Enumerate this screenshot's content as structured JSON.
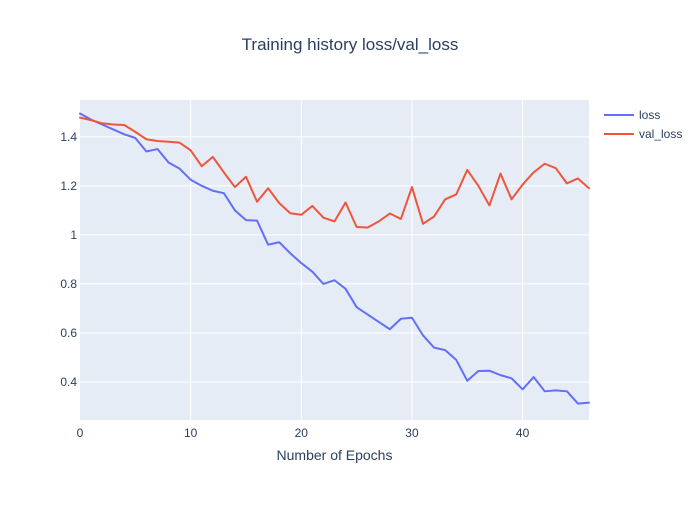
{
  "chart_data": {
    "type": "line",
    "title": "Training history loss/val_loss",
    "xlabel": "Number of Epochs",
    "ylabel": "",
    "xlim": [
      0,
      46
    ],
    "ylim": [
      0.245,
      1.55
    ],
    "xticks": [
      0,
      10,
      20,
      30,
      40
    ],
    "yticks": [
      0.4,
      0.6,
      0.8,
      1,
      1.2,
      1.4
    ],
    "xtick_labels": [
      "0",
      "10",
      "20",
      "30",
      "40"
    ],
    "ytick_labels": [
      "0.4",
      "0.6",
      "0.8",
      "1",
      "1.2",
      "1.4"
    ],
    "grid": true,
    "legend_position": "top-right",
    "colors": {
      "plot_bg": "#e5ecf6",
      "grid": "#ffffff",
      "text": "#2a3f5f",
      "loss": "#636efa",
      "val_loss": "#ef553b"
    },
    "x": [
      0,
      1,
      2,
      3,
      4,
      5,
      6,
      7,
      8,
      9,
      10,
      11,
      12,
      13,
      14,
      15,
      16,
      17,
      18,
      19,
      20,
      21,
      22,
      23,
      24,
      25,
      26,
      27,
      28,
      29,
      30,
      31,
      32,
      33,
      34,
      35,
      36,
      37,
      38,
      39,
      40,
      41,
      42,
      43,
      44,
      45,
      46
    ],
    "series": [
      {
        "name": "loss",
        "color": "#636efa",
        "values": [
          1.495,
          1.47,
          1.45,
          1.43,
          1.41,
          1.395,
          1.34,
          1.35,
          1.295,
          1.27,
          1.225,
          1.2,
          1.18,
          1.17,
          1.1,
          1.06,
          1.058,
          0.96,
          0.97,
          0.925,
          0.885,
          0.85,
          0.8,
          0.815,
          0.78,
          0.705,
          0.675,
          0.645,
          0.615,
          0.658,
          0.662,
          0.59,
          0.54,
          0.53,
          0.49,
          0.405,
          0.445,
          0.446,
          0.428,
          0.415,
          0.37,
          0.42,
          0.362,
          0.366,
          0.362,
          0.312,
          0.316
        ]
      },
      {
        "name": "val_loss",
        "color": "#ef553b",
        "values": [
          1.478,
          1.468,
          1.455,
          1.45,
          1.448,
          1.42,
          1.39,
          1.383,
          1.38,
          1.376,
          1.345,
          1.28,
          1.318,
          1.255,
          1.195,
          1.237,
          1.135,
          1.19,
          1.13,
          1.088,
          1.082,
          1.118,
          1.07,
          1.055,
          1.132,
          1.032,
          1.03,
          1.055,
          1.087,
          1.065,
          1.195,
          1.045,
          1.075,
          1.145,
          1.165,
          1.265,
          1.2,
          1.12,
          1.25,
          1.145,
          1.205,
          1.255,
          1.29,
          1.272,
          1.21,
          1.23,
          1.19
        ]
      }
    ]
  }
}
